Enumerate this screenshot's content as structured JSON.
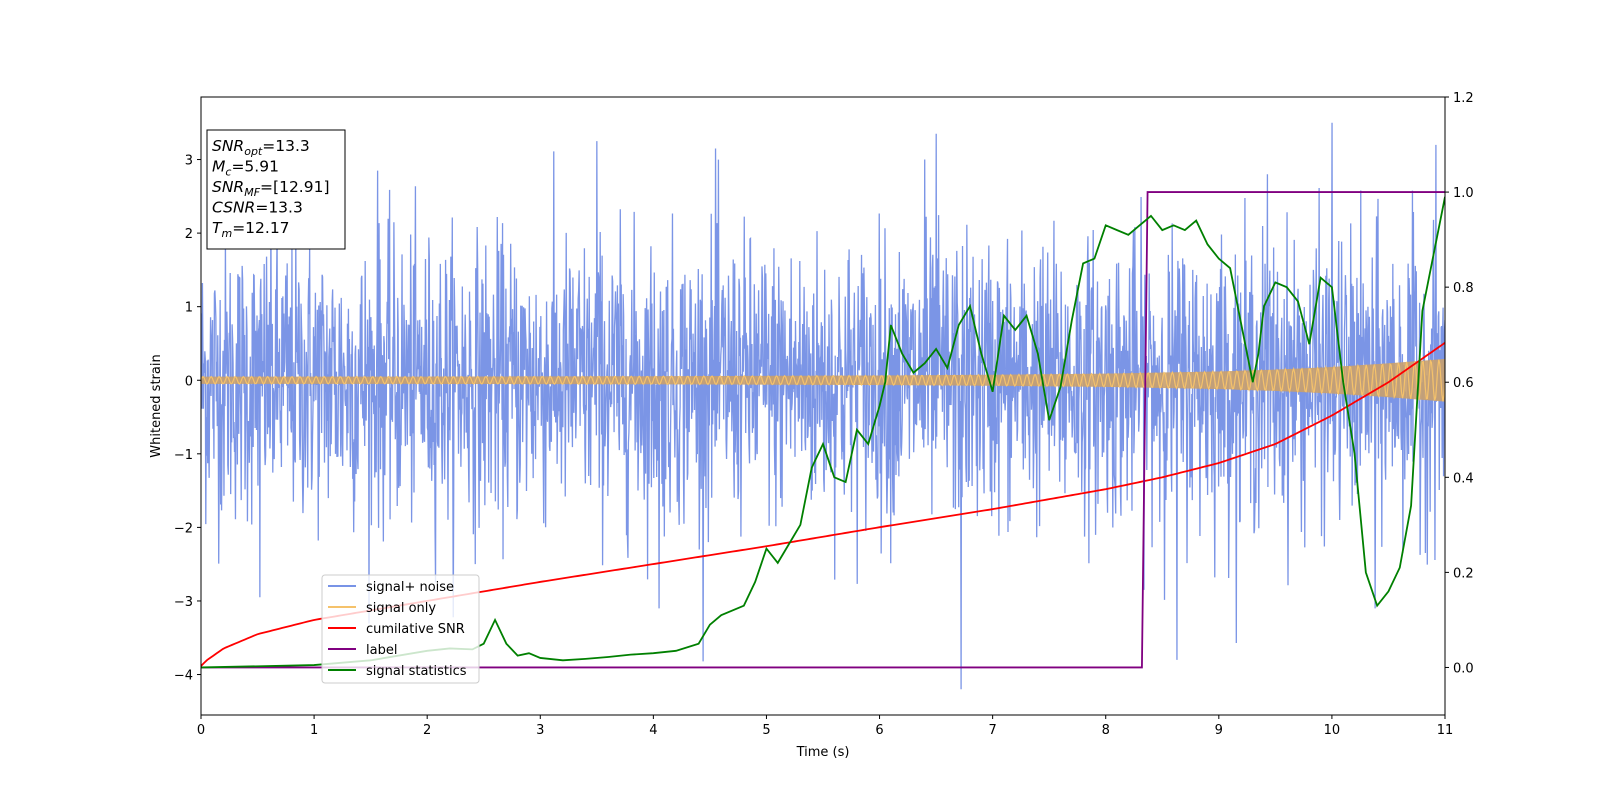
{
  "chart_data": {
    "type": "line",
    "xlabel": "Time (s)",
    "ylabel": "Whitened strain",
    "xlim": [
      0,
      11
    ],
    "ylim": [
      -4.55,
      3.85
    ],
    "y2lim": [
      -0.1,
      1.2
    ],
    "xticks": [
      0,
      1,
      2,
      3,
      4,
      5,
      6,
      7,
      8,
      9,
      10,
      11
    ],
    "yticks": [
      -4,
      -3,
      -2,
      -1,
      0,
      1,
      2,
      3
    ],
    "y2ticks": [
      0.0,
      0.2,
      0.4,
      0.6,
      0.8,
      1.0,
      1.2
    ],
    "grid": false,
    "legend_position": "lower-left",
    "annotation_box": {
      "snr_opt": {
        "sym": "SNR",
        "sub": "opt",
        "val": "=13.3"
      },
      "mc": {
        "sym": "M",
        "sub": "c",
        "val": "=5.91"
      },
      "snr_mf": {
        "sym": "SNR",
        "sub": "MF",
        "val": "=[12.91]"
      },
      "csnr": {
        "sym": "CSNR",
        "val": "=13.3"
      },
      "tm": {
        "sym": "T",
        "sub": "m",
        "val": "=12.17"
      }
    },
    "series": [
      {
        "name": "signal+ noise",
        "axis": "left",
        "color": "#7893e6",
        "description_values": "noise band roughly ±1.5 with spikes",
        "peaks": [
          {
            "x": 0.52,
            "y": -2.95
          },
          {
            "x": 1.56,
            "y": 2.85
          },
          {
            "x": 3.5,
            "y": 3.25
          },
          {
            "x": 4.05,
            "y": -3.1
          },
          {
            "x": 4.55,
            "y": 3.15
          },
          {
            "x": 6.4,
            "y": 3.0
          },
          {
            "x": 6.5,
            "y": 3.35
          },
          {
            "x": 6.72,
            "y": -4.2
          },
          {
            "x": 8.63,
            "y": -3.8
          },
          {
            "x": 9.43,
            "y": 2.8
          },
          {
            "x": 10.0,
            "y": 3.5
          },
          {
            "x": 10.38,
            "y": -3.1
          },
          {
            "x": 10.92,
            "y": 3.2
          }
        ]
      },
      {
        "name": "signal only",
        "axis": "left",
        "color": "#f5c26b",
        "x": [
          0,
          2,
          4,
          6,
          7,
          8,
          9,
          9.5,
          10,
          10.5,
          11
        ],
        "amplitude": [
          0.05,
          0.05,
          0.055,
          0.065,
          0.075,
          0.09,
          0.12,
          0.145,
          0.18,
          0.23,
          0.29
        ]
      },
      {
        "name": "cumilative SNR",
        "axis": "right",
        "color": "#ff0000",
        "x": [
          0,
          0.05,
          0.2,
          0.5,
          1,
          2,
          3,
          4,
          5,
          6,
          7,
          8,
          8.5,
          9,
          9.5,
          10,
          10.5,
          11
        ],
        "y": [
          0.003,
          0.015,
          0.04,
          0.07,
          0.1,
          0.14,
          0.18,
          0.2175,
          0.255,
          0.295,
          0.333,
          0.375,
          0.4,
          0.43,
          0.47,
          0.53,
          0.6,
          0.683
        ]
      },
      {
        "name": "label",
        "axis": "right",
        "color": "#800080",
        "x": [
          0,
          8.32,
          8.37,
          11
        ],
        "y": [
          0,
          0,
          1,
          1
        ]
      },
      {
        "name": "signal statistics",
        "axis": "right",
        "color": "#008000",
        "x": [
          0,
          1,
          1.5,
          2,
          2.2,
          2.4,
          2.5,
          2.6,
          2.7,
          2.8,
          2.9,
          3,
          3.2,
          3.4,
          3.6,
          3.8,
          4,
          4.2,
          4.4,
          4.5,
          4.6,
          4.8,
          4.9,
          5.0,
          5.1,
          5.2,
          5.3,
          5.4,
          5.5,
          5.6,
          5.7,
          5.8,
          5.9,
          6.0,
          6.05,
          6.1,
          6.2,
          6.3,
          6.4,
          6.5,
          6.6,
          6.7,
          6.8,
          6.9,
          7.0,
          7.1,
          7.2,
          7.3,
          7.4,
          7.5,
          7.6,
          7.7,
          7.8,
          7.9,
          8.0,
          8.1,
          8.2,
          8.3,
          8.4,
          8.5,
          8.6,
          8.7,
          8.8,
          8.9,
          9.0,
          9.1,
          9.2,
          9.3,
          9.35,
          9.4,
          9.5,
          9.6,
          9.7,
          9.8,
          9.9,
          10.0,
          10.1,
          10.2,
          10.3,
          10.4,
          10.5,
          10.6,
          10.7,
          10.8,
          10.9,
          11.0
        ],
        "y": [
          0.0,
          0.005,
          0.015,
          0.035,
          0.04,
          0.038,
          0.05,
          0.1,
          0.05,
          0.025,
          0.03,
          0.02,
          0.015,
          0.018,
          0.022,
          0.027,
          0.03,
          0.035,
          0.05,
          0.09,
          0.11,
          0.13,
          0.18,
          0.25,
          0.22,
          0.26,
          0.3,
          0.42,
          0.47,
          0.4,
          0.39,
          0.5,
          0.47,
          0.55,
          0.6,
          0.72,
          0.66,
          0.62,
          0.64,
          0.67,
          0.63,
          0.72,
          0.76,
          0.66,
          0.58,
          0.74,
          0.71,
          0.74,
          0.66,
          0.52,
          0.59,
          0.73,
          0.85,
          0.86,
          0.93,
          0.92,
          0.91,
          0.93,
          0.95,
          0.92,
          0.93,
          0.92,
          0.94,
          0.89,
          0.86,
          0.84,
          0.72,
          0.6,
          0.66,
          0.76,
          0.81,
          0.8,
          0.77,
          0.68,
          0.82,
          0.8,
          0.6,
          0.45,
          0.2,
          0.13,
          0.16,
          0.21,
          0.34,
          0.75,
          0.87,
          0.99
        ]
      }
    ]
  }
}
